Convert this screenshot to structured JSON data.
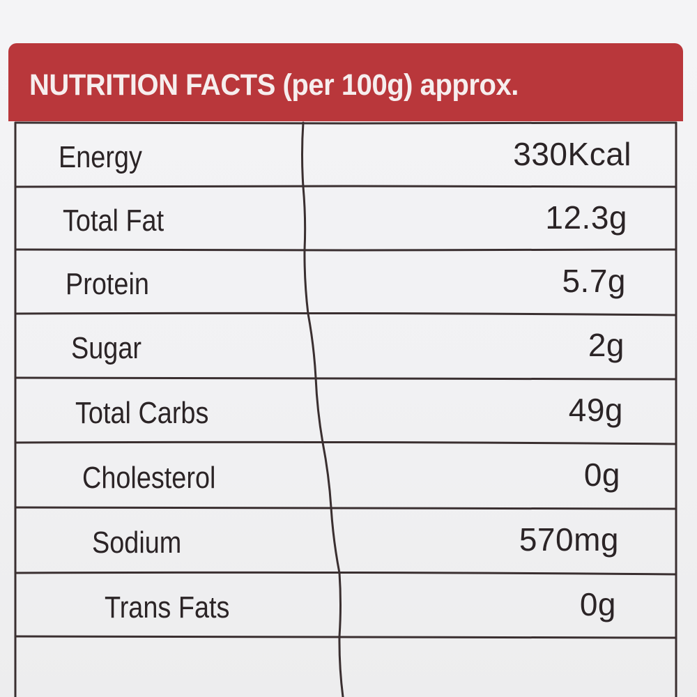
{
  "title": "NUTRITION FACTS (per 100g) approx.",
  "rows": [
    {
      "name": "Energy",
      "value": "330Kcal"
    },
    {
      "name": "Total Fat",
      "value": "12.3g"
    },
    {
      "name": "Protein",
      "value": "5.7g"
    },
    {
      "name": "Sugar",
      "value": "2g"
    },
    {
      "name": "Total Carbs",
      "value": "49g"
    },
    {
      "name": "Cholesterol",
      "value": "0g"
    },
    {
      "name": "Sodium",
      "value": "570mg"
    },
    {
      "name": "Trans Fats",
      "value": "0g"
    }
  ],
  "colors": {
    "header_band": "#b9373b",
    "header_text": "#f6eeee",
    "grid_lines": "#3a2f30",
    "body_text": "#2b2426"
  }
}
